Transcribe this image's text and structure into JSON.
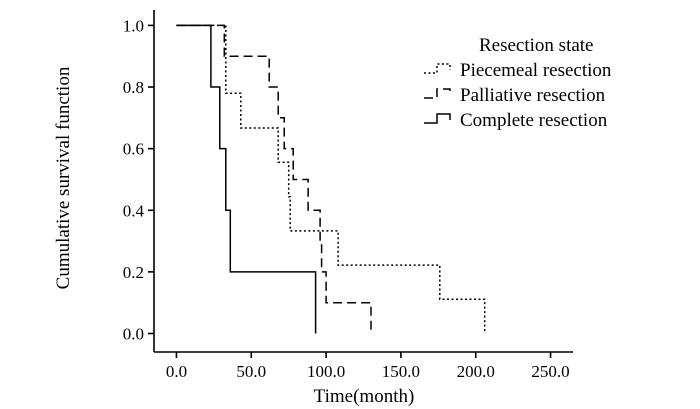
{
  "chart_data": {
    "type": "line",
    "subtype": "kaplan-meier-step",
    "xlabel": "Time(month)",
    "ylabel": "Cumulative survival function",
    "xlim": [
      -15,
      265
    ],
    "ylim": [
      -0.06,
      1.05
    ],
    "x_ticks": [
      0,
      50,
      100,
      150,
      200,
      250
    ],
    "x_tick_labels": [
      "0.0",
      "50.0",
      "100.0",
      "150.0",
      "200.0",
      "250.0"
    ],
    "y_ticks": [
      0,
      0.2,
      0.4,
      0.6,
      0.8,
      1.0
    ],
    "y_tick_labels": [
      "0.0",
      "0.2",
      "0.4",
      "0.6",
      "0.8",
      "1.0"
    ],
    "grid": false,
    "legend": {
      "title": "Resection state",
      "placement": "top-right"
    },
    "series": [
      {
        "name": "Piecemeal resection",
        "style": "dotted",
        "points": [
          [
            0,
            1.0
          ],
          [
            33,
            1.0
          ],
          [
            33,
            0.78
          ],
          [
            43,
            0.78
          ],
          [
            43,
            0.667
          ],
          [
            68,
            0.667
          ],
          [
            68,
            0.556
          ],
          [
            75,
            0.556
          ],
          [
            75,
            0.444
          ],
          [
            76,
            0.444
          ],
          [
            76,
            0.333
          ],
          [
            98,
            0.333
          ],
          [
            108,
            0.333
          ],
          [
            108,
            0.222
          ],
          [
            176,
            0.222
          ],
          [
            176,
            0.111
          ],
          [
            206,
            0.111
          ],
          [
            206,
            0.0
          ]
        ]
      },
      {
        "name": "Palliative resection",
        "style": "dashed",
        "points": [
          [
            0,
            1.0
          ],
          [
            32,
            1.0
          ],
          [
            32,
            0.9
          ],
          [
            62,
            0.9
          ],
          [
            62,
            0.8
          ],
          [
            68,
            0.8
          ],
          [
            68,
            0.7
          ],
          [
            72,
            0.7
          ],
          [
            72,
            0.6
          ],
          [
            78,
            0.6
          ],
          [
            78,
            0.5
          ],
          [
            88,
            0.5
          ],
          [
            88,
            0.4
          ],
          [
            96,
            0.4
          ],
          [
            96,
            0.3
          ],
          [
            97,
            0.3
          ],
          [
            97,
            0.2
          ],
          [
            100,
            0.2
          ],
          [
            100,
            0.1
          ],
          [
            130,
            0.1
          ],
          [
            130,
            0.0
          ]
        ]
      },
      {
        "name": "Complete resection",
        "style": "solid",
        "points": [
          [
            0,
            1.0
          ],
          [
            23,
            1.0
          ],
          [
            23,
            0.8
          ],
          [
            29,
            0.8
          ],
          [
            29,
            0.6
          ],
          [
            33,
            0.6
          ],
          [
            33,
            0.4
          ],
          [
            36,
            0.4
          ],
          [
            36,
            0.2
          ],
          [
            93,
            0.2
          ],
          [
            93,
            0.0
          ]
        ]
      }
    ]
  }
}
